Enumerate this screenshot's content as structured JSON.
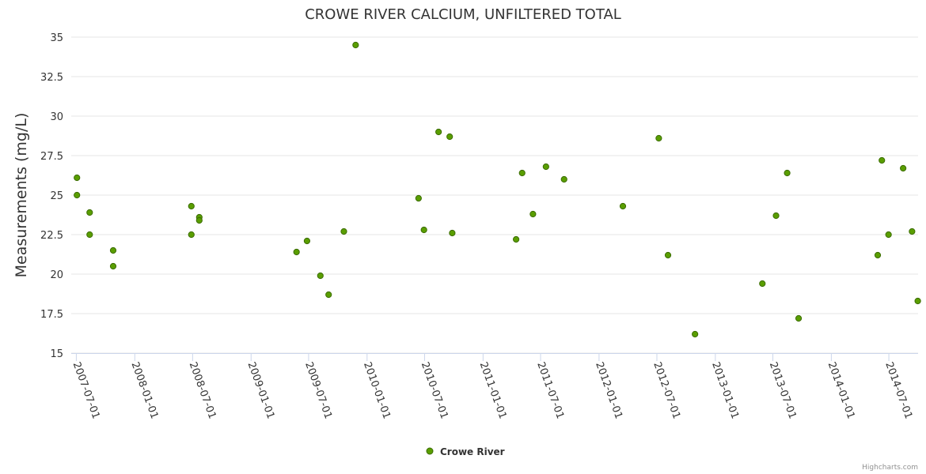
{
  "chart_data": {
    "type": "scatter",
    "title": "CROWE RIVER CALCIUM, UNFILTERED TOTAL",
    "xlabel": "",
    "ylabel": "Measurements (mg/L)",
    "ylim": [
      15,
      35
    ],
    "yticks": [
      "15",
      "17.5",
      "20",
      "22.5",
      "25",
      "27.5",
      "30",
      "32.5",
      "35"
    ],
    "xlim": [
      "2007-06-15",
      "2014-10-01"
    ],
    "xticks": [
      "2007-07-01",
      "2008-01-01",
      "2008-07-01",
      "2009-01-01",
      "2009-07-01",
      "2010-01-01",
      "2010-07-01",
      "2011-01-01",
      "2011-07-01",
      "2012-01-01",
      "2012-07-01",
      "2013-01-01",
      "2013-07-01",
      "2014-01-01",
      "2014-07-01"
    ],
    "grid": true,
    "legend_position": "bottom-center",
    "series": [
      {
        "name": "Crowe River",
        "color": "#5a9e00",
        "points": [
          {
            "x": "2007-07-03",
            "y": 26.1
          },
          {
            "x": "2007-07-03",
            "y": 25.0
          },
          {
            "x": "2007-08-12",
            "y": 23.9
          },
          {
            "x": "2007-08-12",
            "y": 22.5
          },
          {
            "x": "2007-10-25",
            "y": 21.5
          },
          {
            "x": "2007-10-25",
            "y": 20.5
          },
          {
            "x": "2008-06-27",
            "y": 24.3
          },
          {
            "x": "2008-06-27",
            "y": 22.5
          },
          {
            "x": "2008-07-22",
            "y": 23.6
          },
          {
            "x": "2008-07-22",
            "y": 23.4
          },
          {
            "x": "2009-05-24",
            "y": 21.4
          },
          {
            "x": "2009-06-26",
            "y": 22.1
          },
          {
            "x": "2009-08-07",
            "y": 19.9
          },
          {
            "x": "2009-09-02",
            "y": 18.7
          },
          {
            "x": "2009-10-20",
            "y": 22.7
          },
          {
            "x": "2009-11-26",
            "y": 34.5
          },
          {
            "x": "2010-06-12",
            "y": 24.8
          },
          {
            "x": "2010-06-29",
            "y": 22.8
          },
          {
            "x": "2010-08-14",
            "y": 29.0
          },
          {
            "x": "2010-09-18",
            "y": 28.7
          },
          {
            "x": "2010-09-26",
            "y": 22.6
          },
          {
            "x": "2011-04-15",
            "y": 22.2
          },
          {
            "x": "2011-05-04",
            "y": 26.4
          },
          {
            "x": "2011-06-07",
            "y": 23.8
          },
          {
            "x": "2011-07-18",
            "y": 26.8
          },
          {
            "x": "2011-09-13",
            "y": 26.0
          },
          {
            "x": "2012-03-16",
            "y": 24.3
          },
          {
            "x": "2012-07-07",
            "y": 28.6
          },
          {
            "x": "2012-08-05",
            "y": 21.2
          },
          {
            "x": "2012-10-29",
            "y": 16.2
          },
          {
            "x": "2013-05-29",
            "y": 19.4
          },
          {
            "x": "2013-07-11",
            "y": 23.7
          },
          {
            "x": "2013-08-15",
            "y": 26.4
          },
          {
            "x": "2013-09-20",
            "y": 17.2
          },
          {
            "x": "2014-05-27",
            "y": 21.2
          },
          {
            "x": "2014-06-09",
            "y": 27.2
          },
          {
            "x": "2014-06-30",
            "y": 22.5
          },
          {
            "x": "2014-08-15",
            "y": 26.7
          },
          {
            "x": "2014-09-12",
            "y": 22.7
          },
          {
            "x": "2014-09-30",
            "y": 18.3
          }
        ]
      }
    ]
  },
  "credits": "Highcharts.com"
}
